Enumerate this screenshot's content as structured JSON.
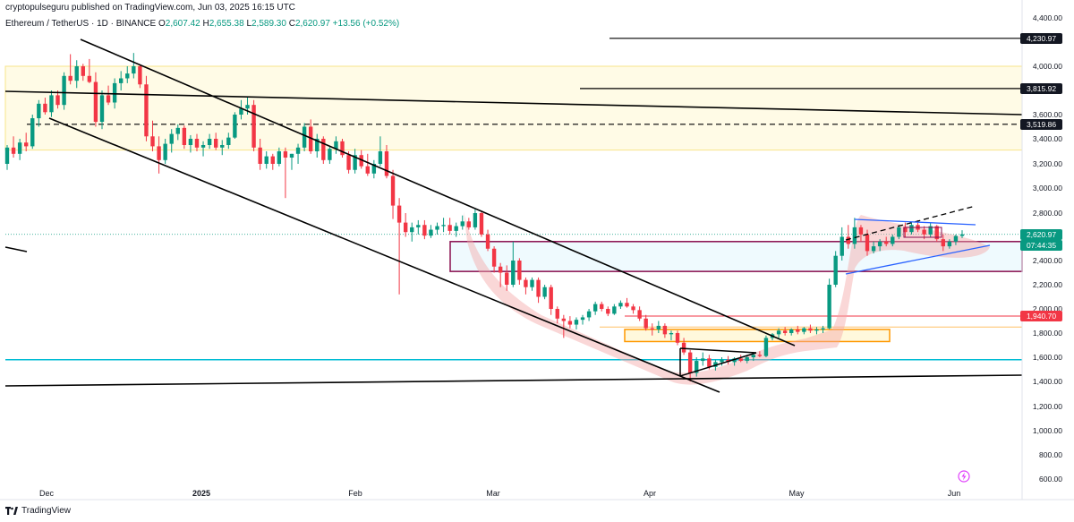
{
  "header": {
    "published": "cryptopulseguru published on TradingView.com, Jun 03, 2025 16:15 UTC",
    "symbol": "Ethereum / TetherUS · 1D · BINANCE",
    "o_label": "O",
    "o_value": "2,607.42",
    "h_label": "H",
    "h_value": "2,655.38",
    "l_label": "L",
    "l_value": "2,589.30",
    "c_label": "C",
    "c_value": "2,620.97",
    "change": "+13.56 (+0.52%)"
  },
  "brand": "TradingView",
  "colors": {
    "up": "#089981",
    "down": "#f23645",
    "channel": "#000000",
    "cyan_line": "#00bcd4",
    "supply_zone": "#f7e58a",
    "box_border": "#880e4f",
    "box_fill": "#e1f5fe",
    "orange_box": "#ff9800",
    "red_line": "#f23645",
    "highlight": "#f4a7a7",
    "triangle": "#2962ff"
  },
  "chart_data": {
    "type": "candlestick",
    "ylim": [
      550,
      4450
    ],
    "yticks": [
      "4,400.00",
      "4,000.00",
      "3,600.00",
      "3,400.00",
      "3,200.00",
      "3,000.00",
      "2,800.00",
      "2,400.00",
      "2,200.00",
      "2,000.00",
      "1,800.00",
      "1,600.00",
      "1,400.00",
      "1,200.00",
      "1,000.00",
      "800.00",
      "600.00"
    ],
    "xticks": [
      {
        "label": "Dec",
        "bold": false
      },
      {
        "label": "2025",
        "bold": true
      },
      {
        "label": "Feb",
        "bold": false
      },
      {
        "label": "Mar",
        "bold": false
      },
      {
        "label": "Apr",
        "bold": false
      },
      {
        "label": "May",
        "bold": false
      },
      {
        "label": "Jun",
        "bold": false
      }
    ],
    "price_labels": [
      {
        "value": 4230.97,
        "text": "4,230.97",
        "style": "dark"
      },
      {
        "value": 3815.92,
        "text": "3,815.92",
        "style": "dark"
      },
      {
        "value": 3519.86,
        "text": "3,519.86",
        "style": "dark"
      },
      {
        "value": 2620.97,
        "text": "2,620.97",
        "style": "green"
      },
      {
        "value": 2560,
        "text": "07:44:35",
        "style": "green"
      },
      {
        "value": 1940.7,
        "text": "1,940.70",
        "style": "red"
      }
    ],
    "levels": {
      "res_4230": 4230.97,
      "res_3815": 3815.92,
      "dashed_3519": 3519.86,
      "red_1940": 1940.7,
      "cyan_support": 1580,
      "supply_zone": [
        3310,
        4000
      ],
      "demand_box": [
        2310,
        2560
      ],
      "orange_box": [
        1730,
        1830
      ]
    },
    "ohlc": [
      [
        3200,
        3350,
        3150,
        3330
      ],
      [
        3330,
        3420,
        3250,
        3280
      ],
      [
        3280,
        3400,
        3230,
        3370
      ],
      [
        3370,
        3450,
        3300,
        3340
      ],
      [
        3340,
        3600,
        3320,
        3570
      ],
      [
        3570,
        3720,
        3500,
        3690
      ],
      [
        3690,
        3740,
        3600,
        3620
      ],
      [
        3620,
        3800,
        3580,
        3760
      ],
      [
        3760,
        3800,
        3650,
        3680
      ],
      [
        3680,
        3950,
        3640,
        3920
      ],
      [
        3920,
        4100,
        3850,
        3880
      ],
      [
        3880,
        4050,
        3820,
        4000
      ],
      [
        4000,
        4020,
        3880,
        3920
      ],
      [
        3920,
        4060,
        3860,
        3870
      ],
      [
        3870,
        3950,
        3500,
        3540
      ],
      [
        3540,
        3800,
        3480,
        3760
      ],
      [
        3760,
        3840,
        3680,
        3700
      ],
      [
        3700,
        3900,
        3650,
        3860
      ],
      [
        3860,
        3960,
        3800,
        3900
      ],
      [
        3900,
        4000,
        3860,
        3940
      ],
      [
        3940,
        4110,
        3900,
        4000
      ],
      [
        4000,
        4010,
        3820,
        3850
      ],
      [
        3850,
        3920,
        3380,
        3420
      ],
      [
        3420,
        3550,
        3300,
        3340
      ],
      [
        3340,
        3420,
        3120,
        3230
      ],
      [
        3230,
        3400,
        3200,
        3360
      ],
      [
        3360,
        3480,
        3290,
        3440
      ],
      [
        3440,
        3520,
        3390,
        3490
      ],
      [
        3490,
        3510,
        3320,
        3350
      ],
      [
        3350,
        3430,
        3290,
        3400
      ],
      [
        3400,
        3440,
        3300,
        3330
      ],
      [
        3330,
        3380,
        3260,
        3350
      ],
      [
        3350,
        3440,
        3320,
        3400
      ],
      [
        3400,
        3450,
        3310,
        3330
      ],
      [
        3330,
        3390,
        3270,
        3350
      ],
      [
        3350,
        3450,
        3320,
        3410
      ],
      [
        3410,
        3620,
        3400,
        3600
      ],
      [
        3600,
        3720,
        3560,
        3650
      ],
      [
        3650,
        3750,
        3600,
        3680
      ],
      [
        3680,
        3720,
        3300,
        3330
      ],
      [
        3330,
        3400,
        3150,
        3200
      ],
      [
        3200,
        3300,
        3160,
        3260
      ],
      [
        3260,
        3280,
        3150,
        3200
      ],
      [
        3200,
        3330,
        3180,
        3300
      ],
      [
        3300,
        3330,
        2920,
        3250
      ],
      [
        3250,
        3280,
        3150,
        3280
      ],
      [
        3280,
        3360,
        3200,
        3330
      ],
      [
        3330,
        3530,
        3300,
        3500
      ],
      [
        3500,
        3560,
        3280,
        3300
      ],
      [
        3300,
        3440,
        3250,
        3400
      ],
      [
        3400,
        3420,
        3200,
        3230
      ],
      [
        3230,
        3340,
        3200,
        3320
      ],
      [
        3320,
        3420,
        3280,
        3380
      ],
      [
        3380,
        3400,
        3250,
        3270
      ],
      [
        3270,
        3300,
        3120,
        3150
      ],
      [
        3150,
        3320,
        3120,
        3270
      ],
      [
        3270,
        3310,
        3160,
        3180
      ],
      [
        3180,
        3280,
        3100,
        3120
      ],
      [
        3120,
        3230,
        3080,
        3200
      ],
      [
        3200,
        3420,
        3180,
        3300
      ],
      [
        3300,
        3350,
        3080,
        3100
      ],
      [
        3100,
        3150,
        2750,
        2860
      ],
      [
        2860,
        2920,
        2120,
        2720
      ],
      [
        2720,
        2800,
        2600,
        2640
      ],
      [
        2640,
        2720,
        2560,
        2680
      ],
      [
        2680,
        2740,
        2620,
        2700
      ],
      [
        2700,
        2740,
        2580,
        2610
      ],
      [
        2610,
        2700,
        2590,
        2660
      ],
      [
        2660,
        2720,
        2620,
        2690
      ],
      [
        2690,
        2760,
        2640,
        2700
      ],
      [
        2700,
        2760,
        2620,
        2650
      ],
      [
        2650,
        2720,
        2600,
        2690
      ],
      [
        2690,
        2780,
        2660,
        2730
      ],
      [
        2730,
        2760,
        2660,
        2680
      ],
      [
        2680,
        2830,
        2660,
        2800
      ],
      [
        2800,
        2820,
        2600,
        2620
      ],
      [
        2620,
        2660,
        2480,
        2500
      ],
      [
        2500,
        2520,
        2300,
        2350
      ],
      [
        2350,
        2380,
        2180,
        2300
      ],
      [
        2300,
        2360,
        2150,
        2200
      ],
      [
        2200,
        2560,
        2180,
        2400
      ],
      [
        2400,
        2420,
        2200,
        2240
      ],
      [
        2240,
        2260,
        2120,
        2180
      ],
      [
        2180,
        2260,
        2150,
        2240
      ],
      [
        2240,
        2260,
        2050,
        2100
      ],
      [
        2100,
        2200,
        2080,
        2180
      ],
      [
        2180,
        2200,
        1950,
        2000
      ],
      [
        2000,
        2020,
        1880,
        1920
      ],
      [
        1920,
        1950,
        1760,
        1900
      ],
      [
        1900,
        1940,
        1840,
        1870
      ],
      [
        1870,
        1930,
        1830,
        1910
      ],
      [
        1910,
        1950,
        1870,
        1930
      ],
      [
        1930,
        2000,
        1900,
        1980
      ],
      [
        1980,
        2060,
        1950,
        2040
      ],
      [
        2040,
        2060,
        1980,
        2000
      ],
      [
        2000,
        2020,
        1940,
        1960
      ],
      [
        1960,
        2040,
        1950,
        2020
      ],
      [
        2020,
        2070,
        2000,
        2050
      ],
      [
        2050,
        2090,
        2010,
        2020
      ],
      [
        2020,
        2040,
        1960,
        1990
      ],
      [
        1990,
        2020,
        1900,
        1920
      ],
      [
        1920,
        1950,
        1820,
        1840
      ],
      [
        1840,
        1880,
        1780,
        1830
      ],
      [
        1830,
        1900,
        1800,
        1860
      ],
      [
        1860,
        1880,
        1760,
        1790
      ],
      [
        1790,
        1820,
        1740,
        1800
      ],
      [
        1800,
        1820,
        1700,
        1720
      ],
      [
        1720,
        1760,
        1620,
        1640
      ],
      [
        1640,
        1660,
        1400,
        1470
      ],
      [
        1470,
        1600,
        1440,
        1570
      ],
      [
        1570,
        1640,
        1530,
        1590
      ],
      [
        1590,
        1620,
        1500,
        1520
      ],
      [
        1520,
        1580,
        1490,
        1560
      ],
      [
        1560,
        1600,
        1530,
        1580
      ],
      [
        1580,
        1610,
        1540,
        1560
      ],
      [
        1560,
        1600,
        1530,
        1590
      ],
      [
        1590,
        1620,
        1560,
        1570
      ],
      [
        1570,
        1610,
        1550,
        1600
      ],
      [
        1600,
        1640,
        1570,
        1620
      ],
      [
        1620,
        1650,
        1600,
        1610
      ],
      [
        1610,
        1780,
        1600,
        1760
      ],
      [
        1760,
        1800,
        1740,
        1790
      ],
      [
        1790,
        1840,
        1760,
        1820
      ],
      [
        1820,
        1850,
        1780,
        1800
      ],
      [
        1800,
        1840,
        1780,
        1830
      ],
      [
        1830,
        1860,
        1790,
        1810
      ],
      [
        1810,
        1850,
        1790,
        1840
      ],
      [
        1840,
        1870,
        1800,
        1820
      ],
      [
        1820,
        1850,
        1790,
        1830
      ],
      [
        1830,
        1860,
        1800,
        1840
      ],
      [
        1840,
        2250,
        1830,
        2200
      ],
      [
        2200,
        2480,
        2180,
        2440
      ],
      [
        2440,
        2680,
        2400,
        2600
      ],
      [
        2600,
        2700,
        2500,
        2540
      ],
      [
        2540,
        2760,
        2500,
        2680
      ],
      [
        2680,
        2700,
        2560,
        2620
      ],
      [
        2620,
        2660,
        2440,
        2480
      ],
      [
        2480,
        2560,
        2460,
        2520
      ],
      [
        2520,
        2580,
        2480,
        2560
      ],
      [
        2560,
        2600,
        2520,
        2540
      ],
      [
        2540,
        2620,
        2520,
        2600
      ],
      [
        2600,
        2700,
        2580,
        2680
      ],
      [
        2680,
        2720,
        2600,
        2640
      ],
      [
        2640,
        2720,
        2620,
        2700
      ],
      [
        2700,
        2740,
        2640,
        2660
      ],
      [
        2660,
        2690,
        2580,
        2620
      ],
      [
        2620,
        2720,
        2600,
        2690
      ],
      [
        2690,
        2700,
        2560,
        2580
      ],
      [
        2580,
        2620,
        2480,
        2520
      ],
      [
        2520,
        2580,
        2500,
        2560
      ],
      [
        2560,
        2620,
        2530,
        2607
      ],
      [
        2607.42,
        2655.38,
        2589.3,
        2620.97
      ]
    ]
  }
}
